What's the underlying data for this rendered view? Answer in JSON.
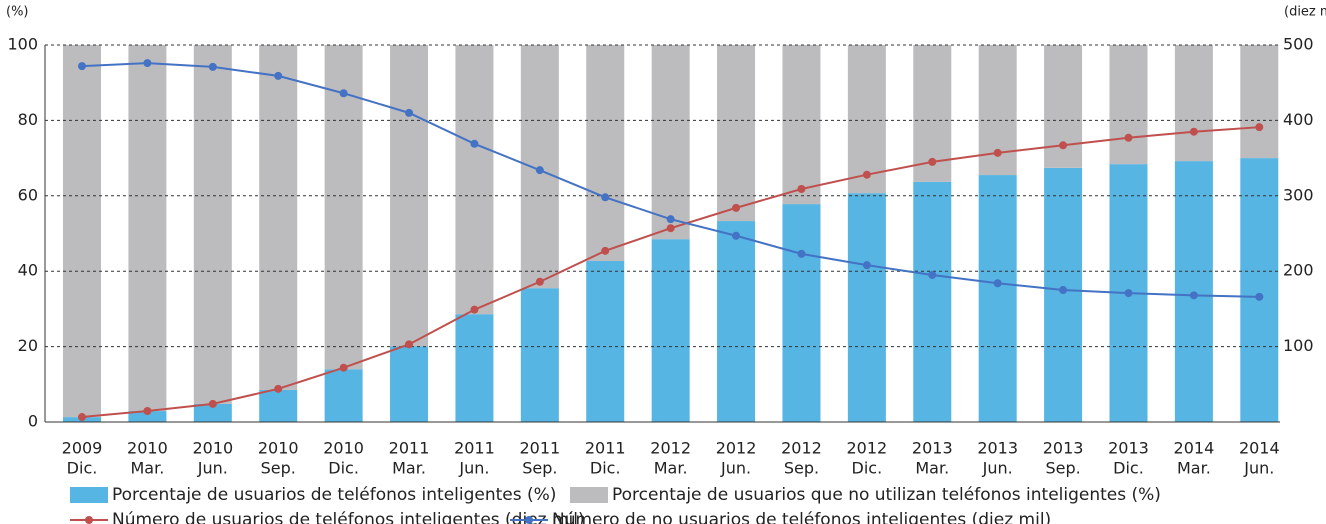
{
  "chart_data": {
    "type": "stacked-bar-line",
    "ylabel": "(%)",
    "y2label": "(diez mil)",
    "categories": [
      [
        "2009",
        "Dic."
      ],
      [
        "2010",
        "Mar."
      ],
      [
        "2010",
        "Jun."
      ],
      [
        "2010",
        "Sep."
      ],
      [
        "2010",
        "Dic."
      ],
      [
        "2011",
        "Mar."
      ],
      [
        "2011",
        "Jun."
      ],
      [
        "2011",
        "Sep."
      ],
      [
        "2011",
        "Dic."
      ],
      [
        "2012",
        "Mar."
      ],
      [
        "2012",
        "Jun."
      ],
      [
        "2012",
        "Sep."
      ],
      [
        "2012",
        "Dic."
      ],
      [
        "2013",
        "Mar."
      ],
      [
        "2013",
        "Jun."
      ],
      [
        "2013",
        "Sep."
      ],
      [
        "2013",
        "Dic."
      ],
      [
        "2014",
        "Mar."
      ],
      [
        "2014",
        "Jun."
      ]
    ],
    "series": [
      {
        "name": "Porcentaje de usuarios de teléfonos inteligentes (%)",
        "color": "#56b5e2",
        "kind": "bar",
        "values": [
          1.3,
          2.9,
          4.8,
          8.5,
          14,
          20.1,
          28.6,
          35.5,
          42.7,
          48.5,
          53.3,
          57.8,
          60.7,
          63.7,
          65.5,
          67.4,
          68.4,
          69.2,
          70
        ]
      },
      {
        "name": "Porcentaje de usuarios que no utilizan teléfonos inteligentes (%)",
        "color": "#bcbcbf",
        "kind": "bar",
        "values": [
          98.7,
          97.1,
          95.2,
          91.5,
          86,
          79.9,
          71.4,
          64.5,
          57.3,
          51.5,
          46.7,
          42.2,
          39.3,
          36.3,
          34.5,
          32.6,
          31.6,
          30.8,
          30
        ]
      },
      {
        "name": "Número de usuarios de teléfonos inteligentes (diez mil)",
        "color": "#c0504d",
        "kind": "line",
        "axis": "y2",
        "values": [
          6.6,
          14.6,
          24,
          44,
          72,
          103,
          149,
          186,
          227,
          257,
          284,
          309,
          328,
          345,
          357,
          367,
          377,
          385,
          391
        ]
      },
      {
        "name": "Número de no usuarios de teléfonos inteligentes (diez mil)",
        "color": "#4472c4",
        "kind": "line",
        "axis": "y2",
        "values": [
          472,
          476,
          471,
          459,
          436,
          410,
          369,
          334,
          298,
          269,
          247,
          223,
          208,
          195,
          184,
          175,
          171,
          168,
          166
        ]
      }
    ],
    "ylim": [
      0,
      100
    ],
    "yticks": [
      0,
      20,
      40,
      60,
      80,
      100
    ],
    "y2lim": [
      0,
      500
    ],
    "y2ticks": [
      100,
      200,
      300,
      400,
      500
    ],
    "grid": true
  }
}
